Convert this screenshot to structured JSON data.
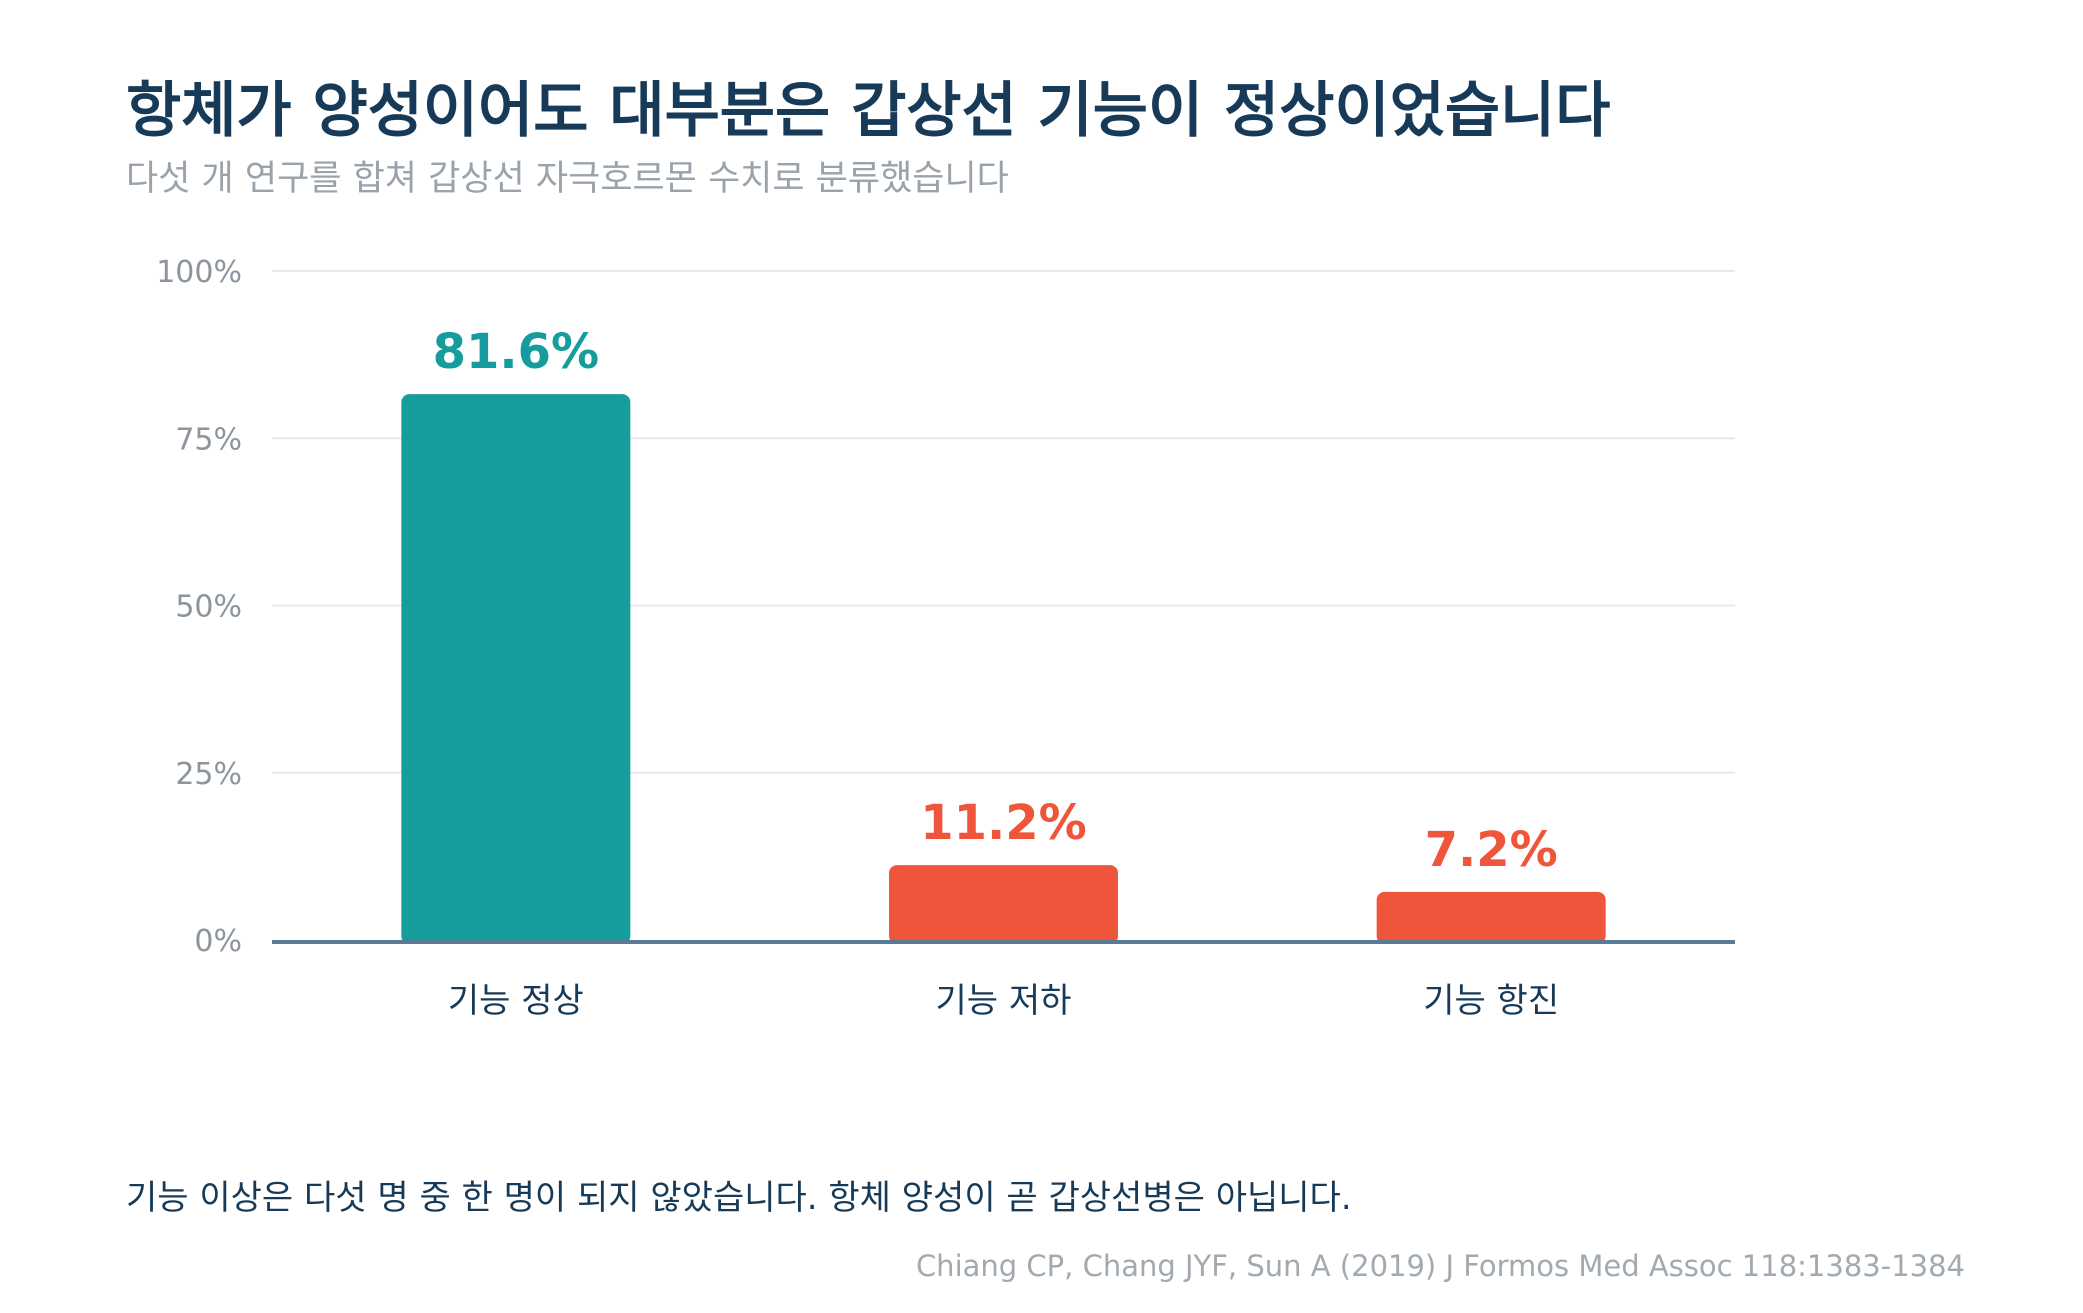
{
  "title": "항체가 양성이어도 대부분은 갑상선 기능이 정상이었습니다",
  "subtitle": "다섯 개 연구를 합쳐 갑상선 자극호르몬 수치로 분류했습니다",
  "footnote": "기능 이상은 다섯 명 중 한 명이 되지 않았습니다. 항체 양성이 곧 갑상선병은 아닙니다.",
  "source": "Chiang CP, Chang JYF, Sun A (2019) J Formos Med Assoc 118:1383-1384",
  "colors": {
    "normal": "#169c9c",
    "abnormal": "#ef553b",
    "axis": "#5b7a96",
    "grid": "#e6e9ec",
    "tick_text": "#8c959e",
    "category_text": "#163a57"
  },
  "chart_data": {
    "type": "bar",
    "categories": [
      "기능 정상",
      "기능 저하",
      "기능 항진"
    ],
    "values": [
      81.6,
      11.2,
      7.2
    ],
    "value_labels": [
      "81.6%",
      "11.2%",
      "7.2%"
    ],
    "bar_colors": [
      "#169c9c",
      "#ef553b",
      "#ef553b"
    ],
    "ylim": [
      0,
      100
    ],
    "yticks": [
      0,
      25,
      50,
      75,
      100
    ],
    "ytick_labels": [
      "0%",
      "25%",
      "50%",
      "75%",
      "100%"
    ],
    "xlabel": "",
    "ylabel": "",
    "grid": true
  }
}
